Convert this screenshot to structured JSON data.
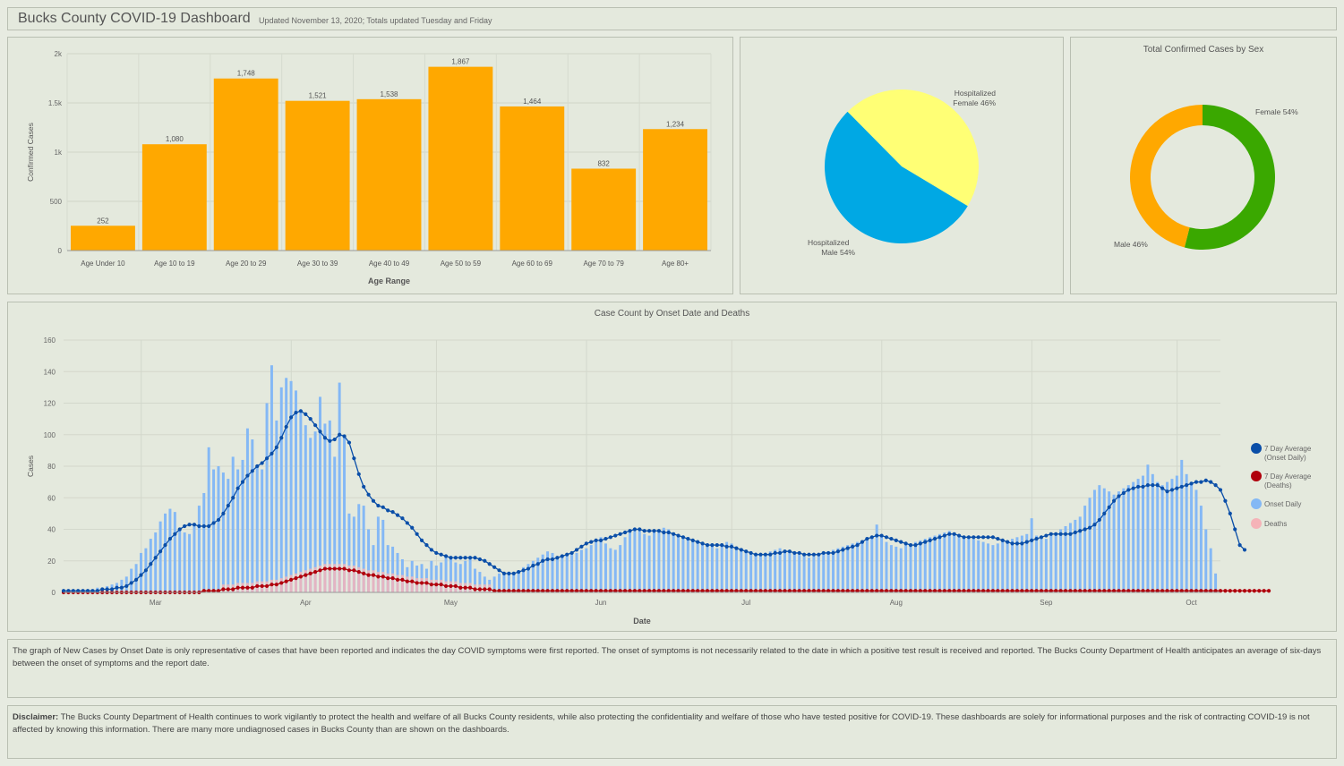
{
  "header": {
    "title": "Bucks County COVID-19 Dashboard",
    "subtitle": "Updated November 13, 2020; Totals updated Tuesday and Friday"
  },
  "colors": {
    "bar": "#ffa800",
    "hosp_female": "#ffff75",
    "hosp_male": "#00a8e4",
    "female": "#3aa800",
    "male": "#ffa800",
    "onset_bar": "#84b8f5",
    "deaths_bar": "#f5b3b8",
    "avg_onset": "#0a4ea8",
    "avg_deaths": "#b0000c"
  },
  "chart_data": [
    {
      "type": "bar",
      "title": "",
      "xlabel": "Age Range",
      "ylabel": "Confirmed Cases",
      "ylim": [
        0,
        2000
      ],
      "yticks": [
        "0",
        "500",
        "1k",
        "1.5k",
        "2k"
      ],
      "categories": [
        "Age Under 10",
        "Age 10 to 19",
        "Age 20 to 29",
        "Age 30 to 39",
        "Age 40 to 49",
        "Age 50 to 59",
        "Age 60 to 69",
        "Age 70 to 79",
        "Age 80+"
      ],
      "values": [
        252,
        1080,
        1748,
        1521,
        1538,
        1867,
        1464,
        832,
        1234
      ],
      "labels": [
        "252",
        "1,080",
        "1,748",
        "1,521",
        "1,538",
        "1,867",
        "1,464",
        "832",
        "1,234"
      ]
    },
    {
      "type": "pie",
      "title": "",
      "slices": [
        {
          "label": "Hospitalized Female",
          "pct_label": "46%",
          "value": 46
        },
        {
          "label": "Hospitalized Male",
          "pct_label": "54%",
          "value": 54
        }
      ]
    },
    {
      "type": "pie",
      "title": "Total Confirmed Cases by Sex",
      "donut": true,
      "slices": [
        {
          "label": "Female",
          "pct_label": "54%",
          "value": 54
        },
        {
          "label": "Male",
          "pct_label": "46%",
          "value": 46
        }
      ]
    },
    {
      "type": "bar",
      "title": "Case Count by Onset Date and Deaths",
      "xlabel": "Date",
      "ylabel": "Cases",
      "ylim": [
        0,
        160
      ],
      "yticks": [
        "0",
        "20",
        "40",
        "60",
        "80",
        "100",
        "120",
        "140",
        "160"
      ],
      "month_labels": [
        "Mar",
        "Apr",
        "May",
        "Jun",
        "Jul",
        "Aug",
        "Sep",
        "Oct"
      ],
      "legend": [
        "7 Day Average (Onset Daily)",
        "7 Day Average (Deaths)",
        "Onset Daily",
        "Deaths"
      ],
      "legend_position": "right",
      "onset_daily": [
        0,
        0,
        0,
        0,
        1,
        2,
        2,
        3,
        3,
        4,
        5,
        6,
        8,
        10,
        15,
        18,
        25,
        28,
        34,
        38,
        45,
        50,
        53,
        51,
        40,
        38,
        37,
        42,
        55,
        63,
        92,
        78,
        80,
        76,
        72,
        86,
        78,
        84,
        104,
        97,
        81,
        78,
        120,
        144,
        109,
        130,
        136,
        134,
        128,
        115,
        106,
        98,
        102,
        124,
        107,
        109,
        86,
        133,
        99,
        50,
        48,
        56,
        55,
        40,
        30,
        48,
        46,
        30,
        29,
        25,
        21,
        16,
        20,
        17,
        18,
        15,
        20,
        17,
        19,
        22,
        23,
        19,
        18,
        20,
        22,
        15,
        13,
        10,
        8,
        10,
        12,
        11,
        13,
        12,
        14,
        16,
        18,
        20,
        22,
        24,
        26,
        25,
        22,
        23,
        24,
        26,
        25,
        27,
        28,
        30,
        32,
        35,
        31,
        28,
        27,
        30,
        35,
        38,
        40,
        39,
        37,
        36,
        38,
        39,
        41,
        40,
        38,
        37,
        36,
        35,
        33,
        32,
        30,
        31,
        29,
        28,
        30,
        32,
        31,
        29,
        28,
        27,
        26,
        25,
        24,
        25,
        26,
        27,
        28,
        27,
        26,
        25,
        24,
        23,
        22,
        23,
        24,
        25,
        26,
        27,
        28,
        29,
        30,
        31,
        32,
        33,
        34,
        35,
        43,
        36,
        32,
        30,
        29,
        28,
        30,
        31,
        32,
        33,
        34,
        35,
        36,
        37,
        38,
        39,
        38,
        37,
        36,
        35,
        34,
        33,
        32,
        31,
        30,
        31,
        32,
        33,
        34,
        35,
        36,
        37,
        47,
        36,
        35,
        34,
        36,
        38,
        40,
        42,
        44,
        46,
        48,
        55,
        60,
        65,
        68,
        66,
        64,
        62,
        64,
        66,
        68,
        70,
        72,
        74,
        81,
        75,
        70,
        68,
        70,
        72,
        74,
        84,
        75,
        70,
        65,
        55,
        40,
        28,
        12,
        0
      ],
      "avg_onset": [
        1,
        1,
        1,
        1,
        1,
        1,
        1,
        1,
        2,
        2,
        2,
        3,
        3,
        4,
        6,
        8,
        11,
        14,
        18,
        22,
        26,
        30,
        34,
        37,
        40,
        42,
        43,
        43,
        42,
        42,
        42,
        44,
        46,
        50,
        55,
        60,
        66,
        70,
        74,
        77,
        80,
        82,
        85,
        88,
        92,
        98,
        105,
        111,
        114,
        115,
        113,
        110,
        106,
        102,
        98,
        96,
        97,
        100,
        99,
        95,
        85,
        75,
        67,
        62,
        58,
        55,
        54,
        52,
        51,
        49,
        47,
        44,
        41,
        37,
        33,
        30,
        27,
        25,
        24,
        23,
        22,
        22,
        22,
        22,
        22,
        22,
        21,
        20,
        18,
        16,
        14,
        12,
        12,
        12,
        13,
        14,
        15,
        17,
        18,
        20,
        21,
        21,
        22,
        23,
        24,
        25,
        27,
        29,
        31,
        32,
        33,
        33,
        34,
        35,
        36,
        37,
        38,
        39,
        40,
        40,
        39,
        39,
        39,
        39,
        38,
        38,
        37,
        36,
        35,
        34,
        33,
        32,
        31,
        30,
        30,
        30,
        30,
        29,
        29,
        28,
        27,
        26,
        25,
        24,
        24,
        24,
        24,
        25,
        25,
        26,
        26,
        25,
        25,
        24,
        24,
        24,
        24,
        25,
        25,
        25,
        26,
        27,
        28,
        29,
        30,
        32,
        34,
        35,
        36,
        36,
        35,
        34,
        33,
        32,
        31,
        30,
        30,
        31,
        32,
        33,
        34,
        35,
        36,
        37,
        37,
        36,
        35,
        35,
        35,
        35,
        35,
        35,
        35,
        34,
        33,
        32,
        31,
        31,
        31,
        32,
        33,
        34,
        35,
        36,
        37,
        37,
        37,
        37,
        37,
        38,
        39,
        40,
        41,
        43,
        46,
        50,
        54,
        58,
        61,
        63,
        65,
        66,
        67,
        67,
        68,
        68,
        68,
        66,
        64,
        65,
        66,
        67,
        68,
        69,
        70,
        70,
        71,
        70,
        68,
        65,
        58,
        50,
        40,
        30,
        27
      ],
      "avg_deaths": [
        0,
        0,
        0,
        0,
        0,
        0,
        0,
        0,
        0,
        0,
        0,
        0,
        0,
        0,
        0,
        0,
        0,
        0,
        0,
        0,
        0,
        0,
        0,
        0,
        0,
        0,
        0,
        0,
        0,
        1,
        1,
        1,
        1,
        2,
        2,
        2,
        3,
        3,
        3,
        3,
        4,
        4,
        4,
        5,
        5,
        6,
        7,
        8,
        9,
        10,
        11,
        12,
        13,
        14,
        15,
        15,
        15,
        15,
        15,
        14,
        14,
        13,
        12,
        11,
        11,
        10,
        10,
        9,
        9,
        8,
        8,
        7,
        7,
        6,
        6,
        6,
        5,
        5,
        5,
        4,
        4,
        4,
        3,
        3,
        3,
        2,
        2,
        2,
        2,
        1,
        1,
        1,
        1,
        1,
        1,
        1,
        1,
        1,
        1,
        1,
        1,
        1,
        1,
        1,
        1,
        1,
        1,
        1,
        1,
        1,
        1,
        1,
        1,
        1,
        1,
        1,
        1,
        1,
        1,
        1,
        1,
        1,
        1,
        1,
        1,
        1,
        1,
        1,
        1,
        1,
        1,
        1,
        1,
        1,
        1,
        1,
        1,
        1,
        1,
        1,
        1,
        1,
        1,
        1,
        1,
        1,
        1,
        1,
        1,
        1,
        1,
        1,
        1,
        1,
        1,
        1,
        1,
        1,
        1,
        1,
        1,
        1,
        1,
        1,
        1,
        1,
        1,
        1,
        1,
        1,
        1,
        1,
        1,
        1,
        1,
        1,
        1,
        1,
        1,
        1,
        1,
        1,
        1,
        1,
        1,
        1,
        1,
        1,
        1,
        1,
        1,
        1,
        1,
        1,
        1,
        1,
        1,
        1,
        1,
        1,
        1,
        1,
        1,
        1,
        1,
        1,
        1,
        1,
        1,
        1,
        1,
        1,
        1,
        1,
        1,
        1,
        1,
        1,
        1,
        1,
        1,
        1,
        1,
        1,
        1,
        1,
        1,
        1,
        1,
        1,
        1,
        1,
        1,
        1,
        1,
        1,
        1,
        1,
        1,
        1,
        1,
        1,
        1,
        1,
        1,
        1,
        1,
        1,
        1,
        1
      ]
    }
  ],
  "note": {
    "text": "The graph of New Cases by Onset Date is only representative of cases that have been reported and indicates the day COVID symptoms were first reported. The onset of symptoms is not necessarily related to the date in which a positive test result is received and reported. The Bucks County Department of Health anticipates an average of six-days between the onset of symptoms and the report date."
  },
  "disclaimer": {
    "label": "Disclaimer:",
    "text": "The Bucks County Department of Health continues to work vigilantly to protect the health and welfare of all Bucks County residents, while also protecting the confidentiality and welfare of those who have tested positive for COVID-19.  These dashboards are solely for informational purposes and the risk of contracting COVID-19 is not affected by knowing this information.  There are many more undiagnosed cases in Bucks County than are shown on the dashboards."
  }
}
